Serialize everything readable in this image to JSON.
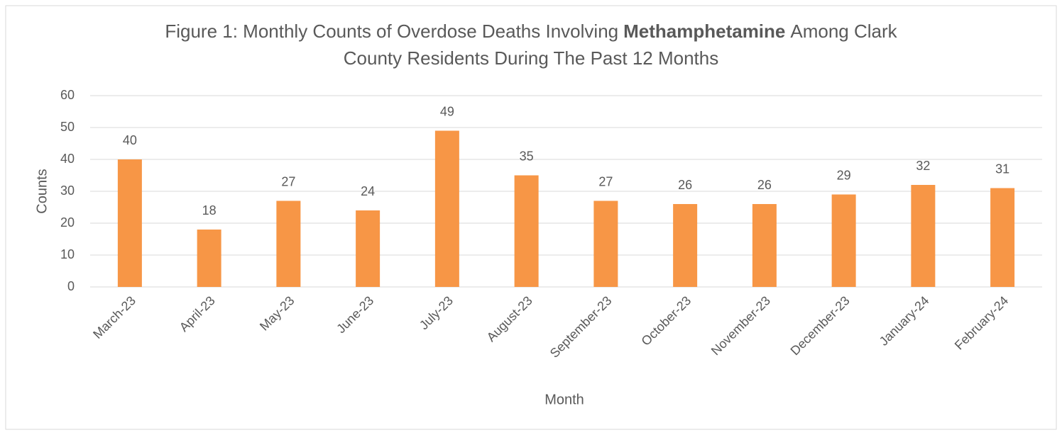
{
  "chart_data": {
    "type": "bar",
    "title": [
      "Figure 1: Monthly Counts of Overdose Deaths Involving",
      "Methamphetamine",
      "Among Clark",
      "County Residents During The Past 12 Months"
    ],
    "x_label": "Month",
    "y_label": "Counts",
    "categories": [
      "March-23",
      "April-23",
      "May-23",
      "June-23",
      "July-23",
      "August-23",
      "September-23",
      "October-23",
      "November-23",
      "December-23",
      "January-24",
      "February-24"
    ],
    "values": [
      40,
      18,
      27,
      24,
      49,
      35,
      27,
      26,
      26,
      29,
      32,
      31
    ],
    "color": "#f79646",
    "ylim": [
      0,
      60
    ],
    "yticks": [
      0,
      10,
      20,
      30,
      40,
      50,
      60
    ],
    "grid": true
  }
}
